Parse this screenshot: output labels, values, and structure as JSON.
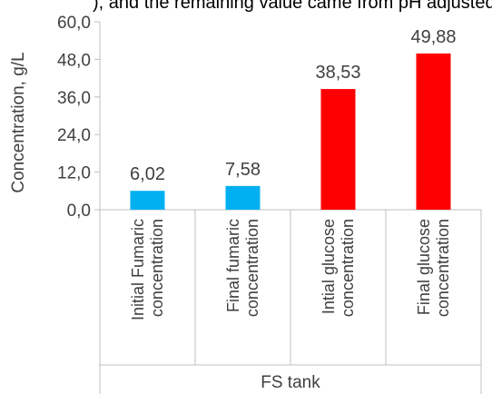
{
  "caption_text": "), and the remaining value came from pH adjusted",
  "chart_data": {
    "type": "bar",
    "title": "",
    "xlabel": "",
    "ylabel": "Concentration, g/L",
    "ylim": [
      0,
      60
    ],
    "yticks": [
      "0,0",
      "12,0",
      "24,0",
      "36,0",
      "48,0",
      "60,0"
    ],
    "grid": false,
    "categories": [
      [
        "Initial Fumaric",
        "concentration"
      ],
      [
        "Final fumaric",
        "concentration"
      ],
      [
        "Intial glucose",
        "concentration"
      ],
      [
        "Final glucose",
        "concentration"
      ]
    ],
    "values": [
      6.02,
      7.58,
      38.53,
      49.88
    ],
    "value_labels": [
      "6,02",
      "7,58",
      "38,53",
      "49,88"
    ],
    "colors": [
      "#00b0f0",
      "#00b0f0",
      "#ff0000",
      "#ff0000"
    ],
    "group_label": "FS tank"
  }
}
